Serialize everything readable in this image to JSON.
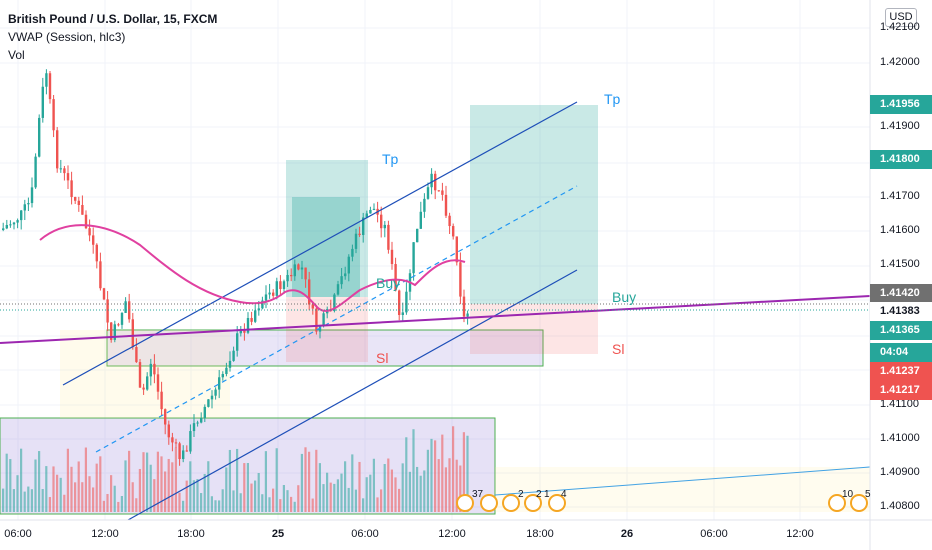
{
  "header": {
    "symbol_title": "British Pound / U.S. Dollar, 15, FXCM",
    "indicator_vwap": "VWAP (Session, hlc3)",
    "indicator_vol": "Vol",
    "currency_button": "USD"
  },
  "price_axis": {
    "labels": [
      "1.42100",
      "1.42000",
      "1.41900",
      "1.41700",
      "1.41600",
      "1.41500",
      "1.41100",
      "1.41000",
      "1.40900",
      "1.40800"
    ]
  },
  "price_tags": [
    {
      "value": "1.41956",
      "color": "#26a69a"
    },
    {
      "value": "1.41800",
      "color": "#26a69a"
    },
    {
      "value": "1.41420",
      "color": "#707070"
    },
    {
      "value": "1.41383",
      "color": "#ffffff"
    },
    {
      "value": "1.41365",
      "color": "#26a69a"
    },
    {
      "value": "04:04",
      "color": "#26a69a"
    },
    {
      "value": "1.41237",
      "color": "#ef5350"
    },
    {
      "value": "1.41217",
      "color": "#ef5350"
    }
  ],
  "time_axis": {
    "labels": [
      "06:00",
      "12:00",
      "18:00",
      "25",
      "06:00",
      "12:00",
      "18:00",
      "26",
      "06:00",
      "12:00"
    ]
  },
  "annotations": {
    "tp_1": "Tp",
    "tp_2": "Tp",
    "buy_1": "Buy",
    "buy_2": "Buy",
    "sl_1": "Sl",
    "sl_2": "Sl"
  },
  "events": {
    "group1_counts": [
      "37",
      "2",
      "2",
      "1",
      "4"
    ],
    "group2_counts": [
      "10",
      "5"
    ]
  },
  "colors": {
    "bull": "#26a69a",
    "bear": "#ef5350",
    "vwap": "#e040a0",
    "trendline": "#9c27b0",
    "channel": "#2962ff"
  }
}
